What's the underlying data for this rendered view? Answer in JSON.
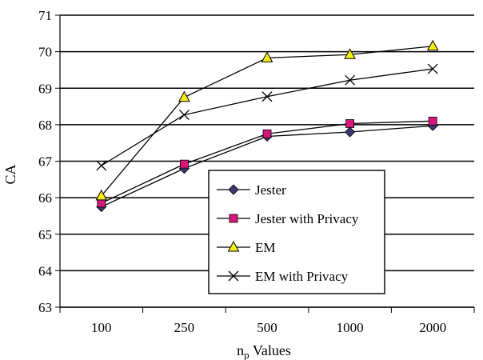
{
  "chart_data": {
    "type": "line",
    "categories": [
      "100",
      "250",
      "500",
      "1000",
      "2000"
    ],
    "ylabel": "CA",
    "xlabel": {
      "main": "n",
      "subscript": "p",
      "suffix": " Values"
    },
    "ylim": [
      63,
      71
    ],
    "yticks": [
      "63",
      "64",
      "65",
      "66",
      "67",
      "68",
      "69",
      "70",
      "71"
    ],
    "grid": "horizontal",
    "legend_placement": "lower-right inside plot",
    "series": [
      {
        "name": "Jester",
        "marker": "diamond",
        "fill": "#3c3870",
        "values": [
          65.75,
          66.8,
          67.68,
          67.8,
          67.97
        ]
      },
      {
        "name": "Jester with Privacy",
        "marker": "square",
        "fill": "#d8167b",
        "values": [
          65.85,
          66.92,
          67.75,
          68.03,
          68.1
        ]
      },
      {
        "name": "EM",
        "marker": "triangle",
        "fill": "#f5ee16",
        "values": [
          66.05,
          68.75,
          69.83,
          69.92,
          70.15
        ]
      },
      {
        "name": "EM with Privacy",
        "marker": "x",
        "fill": "none",
        "values": [
          66.88,
          68.27,
          68.77,
          69.22,
          69.53
        ]
      }
    ]
  }
}
